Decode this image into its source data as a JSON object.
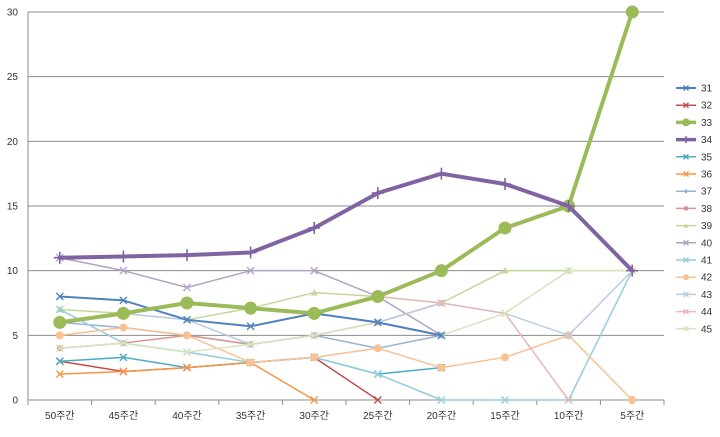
{
  "chart_data": {
    "type": "line",
    "title": "",
    "xlabel": "",
    "ylabel": "",
    "categories": [
      "50주간",
      "45주간",
      "40주간",
      "35주간",
      "30주간",
      "25주간",
      "20주간",
      "15주간",
      "10주간",
      "5주간"
    ],
    "ylim": [
      0,
      30
    ],
    "yticks": [
      0,
      5,
      10,
      15,
      20,
      25,
      30
    ],
    "grid": "horizontal",
    "legend_position": "right",
    "series": [
      {
        "name": "31",
        "color": "#4F81BD",
        "marker": "x",
        "width": 2,
        "values": [
          8,
          7.7,
          6.2,
          5.7,
          6.7,
          6,
          5,
          null,
          null,
          null
        ]
      },
      {
        "name": "32",
        "color": "#C0504D",
        "marker": "x",
        "width": 1.5,
        "values": [
          3,
          2.2,
          2.5,
          2.9,
          3.3,
          0,
          null,
          null,
          null,
          null
        ]
      },
      {
        "name": "33",
        "color": "#9BBB59",
        "marker": "circle",
        "width": 4,
        "values": [
          6,
          6.7,
          7.5,
          7.1,
          6.7,
          8,
          10,
          13.3,
          15,
          30
        ]
      },
      {
        "name": "34",
        "color": "#8064A2",
        "marker": "plus",
        "width": 4,
        "values": [
          11,
          11.1,
          11.2,
          11.4,
          13.3,
          16,
          17.5,
          16.7,
          15,
          10
        ]
      },
      {
        "name": "35",
        "color": "#4BACC6",
        "marker": "x",
        "width": 1.5,
        "values": [
          3,
          3.3,
          2.5,
          2.9,
          3.3,
          2,
          2.5,
          null,
          null,
          null
        ]
      },
      {
        "name": "36",
        "color": "#F79646",
        "marker": "x",
        "width": 1.5,
        "values": [
          2,
          2.2,
          2.5,
          2.9,
          0,
          null,
          null,
          null,
          null,
          null
        ]
      },
      {
        "name": "37",
        "color": "#95B3D7",
        "marker": "diamond",
        "width": 1.5,
        "values": [
          6,
          5.6,
          5,
          4.3,
          5,
          4,
          5,
          null,
          null,
          null
        ]
      },
      {
        "name": "38",
        "color": "#D99694",
        "marker": "square",
        "width": 1.5,
        "values": [
          4,
          4.4,
          5,
          4.3,
          5,
          6,
          7.5,
          null,
          null,
          null
        ]
      },
      {
        "name": "39",
        "color": "#C3D69B",
        "marker": "triangle",
        "width": 1.5,
        "values": [
          7,
          6.7,
          6.2,
          7.1,
          8.3,
          8,
          7.5,
          10,
          10,
          10
        ]
      },
      {
        "name": "40",
        "color": "#B3A2C7",
        "marker": "x",
        "width": 1.5,
        "values": [
          11,
          10,
          8.7,
          10,
          10,
          8,
          5,
          null,
          null,
          null
        ]
      },
      {
        "name": "41",
        "color": "#93CDDD",
        "marker": "x",
        "width": 1.5,
        "values": [
          7,
          4.4,
          3.7,
          2.9,
          3.3,
          2,
          0,
          0,
          0,
          10
        ]
      },
      {
        "name": "42",
        "color": "#FAC090",
        "marker": "circle",
        "width": 1.5,
        "values": [
          5,
          5.6,
          5,
          2.9,
          3.3,
          4,
          2.5,
          3.3,
          5,
          0
        ]
      },
      {
        "name": "43",
        "color": "#B9CDE5",
        "marker": "x",
        "width": 1.5,
        "values": [
          6,
          6.7,
          6.2,
          4.3,
          5,
          6,
          7.5,
          6.7,
          5,
          10
        ]
      },
      {
        "name": "44",
        "color": "#E6B9B8",
        "marker": "x",
        "width": 1.5,
        "values": [
          null,
          null,
          null,
          null,
          null,
          8,
          7.5,
          6.7,
          0,
          null
        ]
      },
      {
        "name": "45",
        "color": "#D7E4BD",
        "marker": "x",
        "width": 1.5,
        "values": [
          4,
          4.4,
          3.7,
          4.3,
          5,
          6,
          5,
          6.7,
          10,
          10
        ]
      }
    ]
  }
}
